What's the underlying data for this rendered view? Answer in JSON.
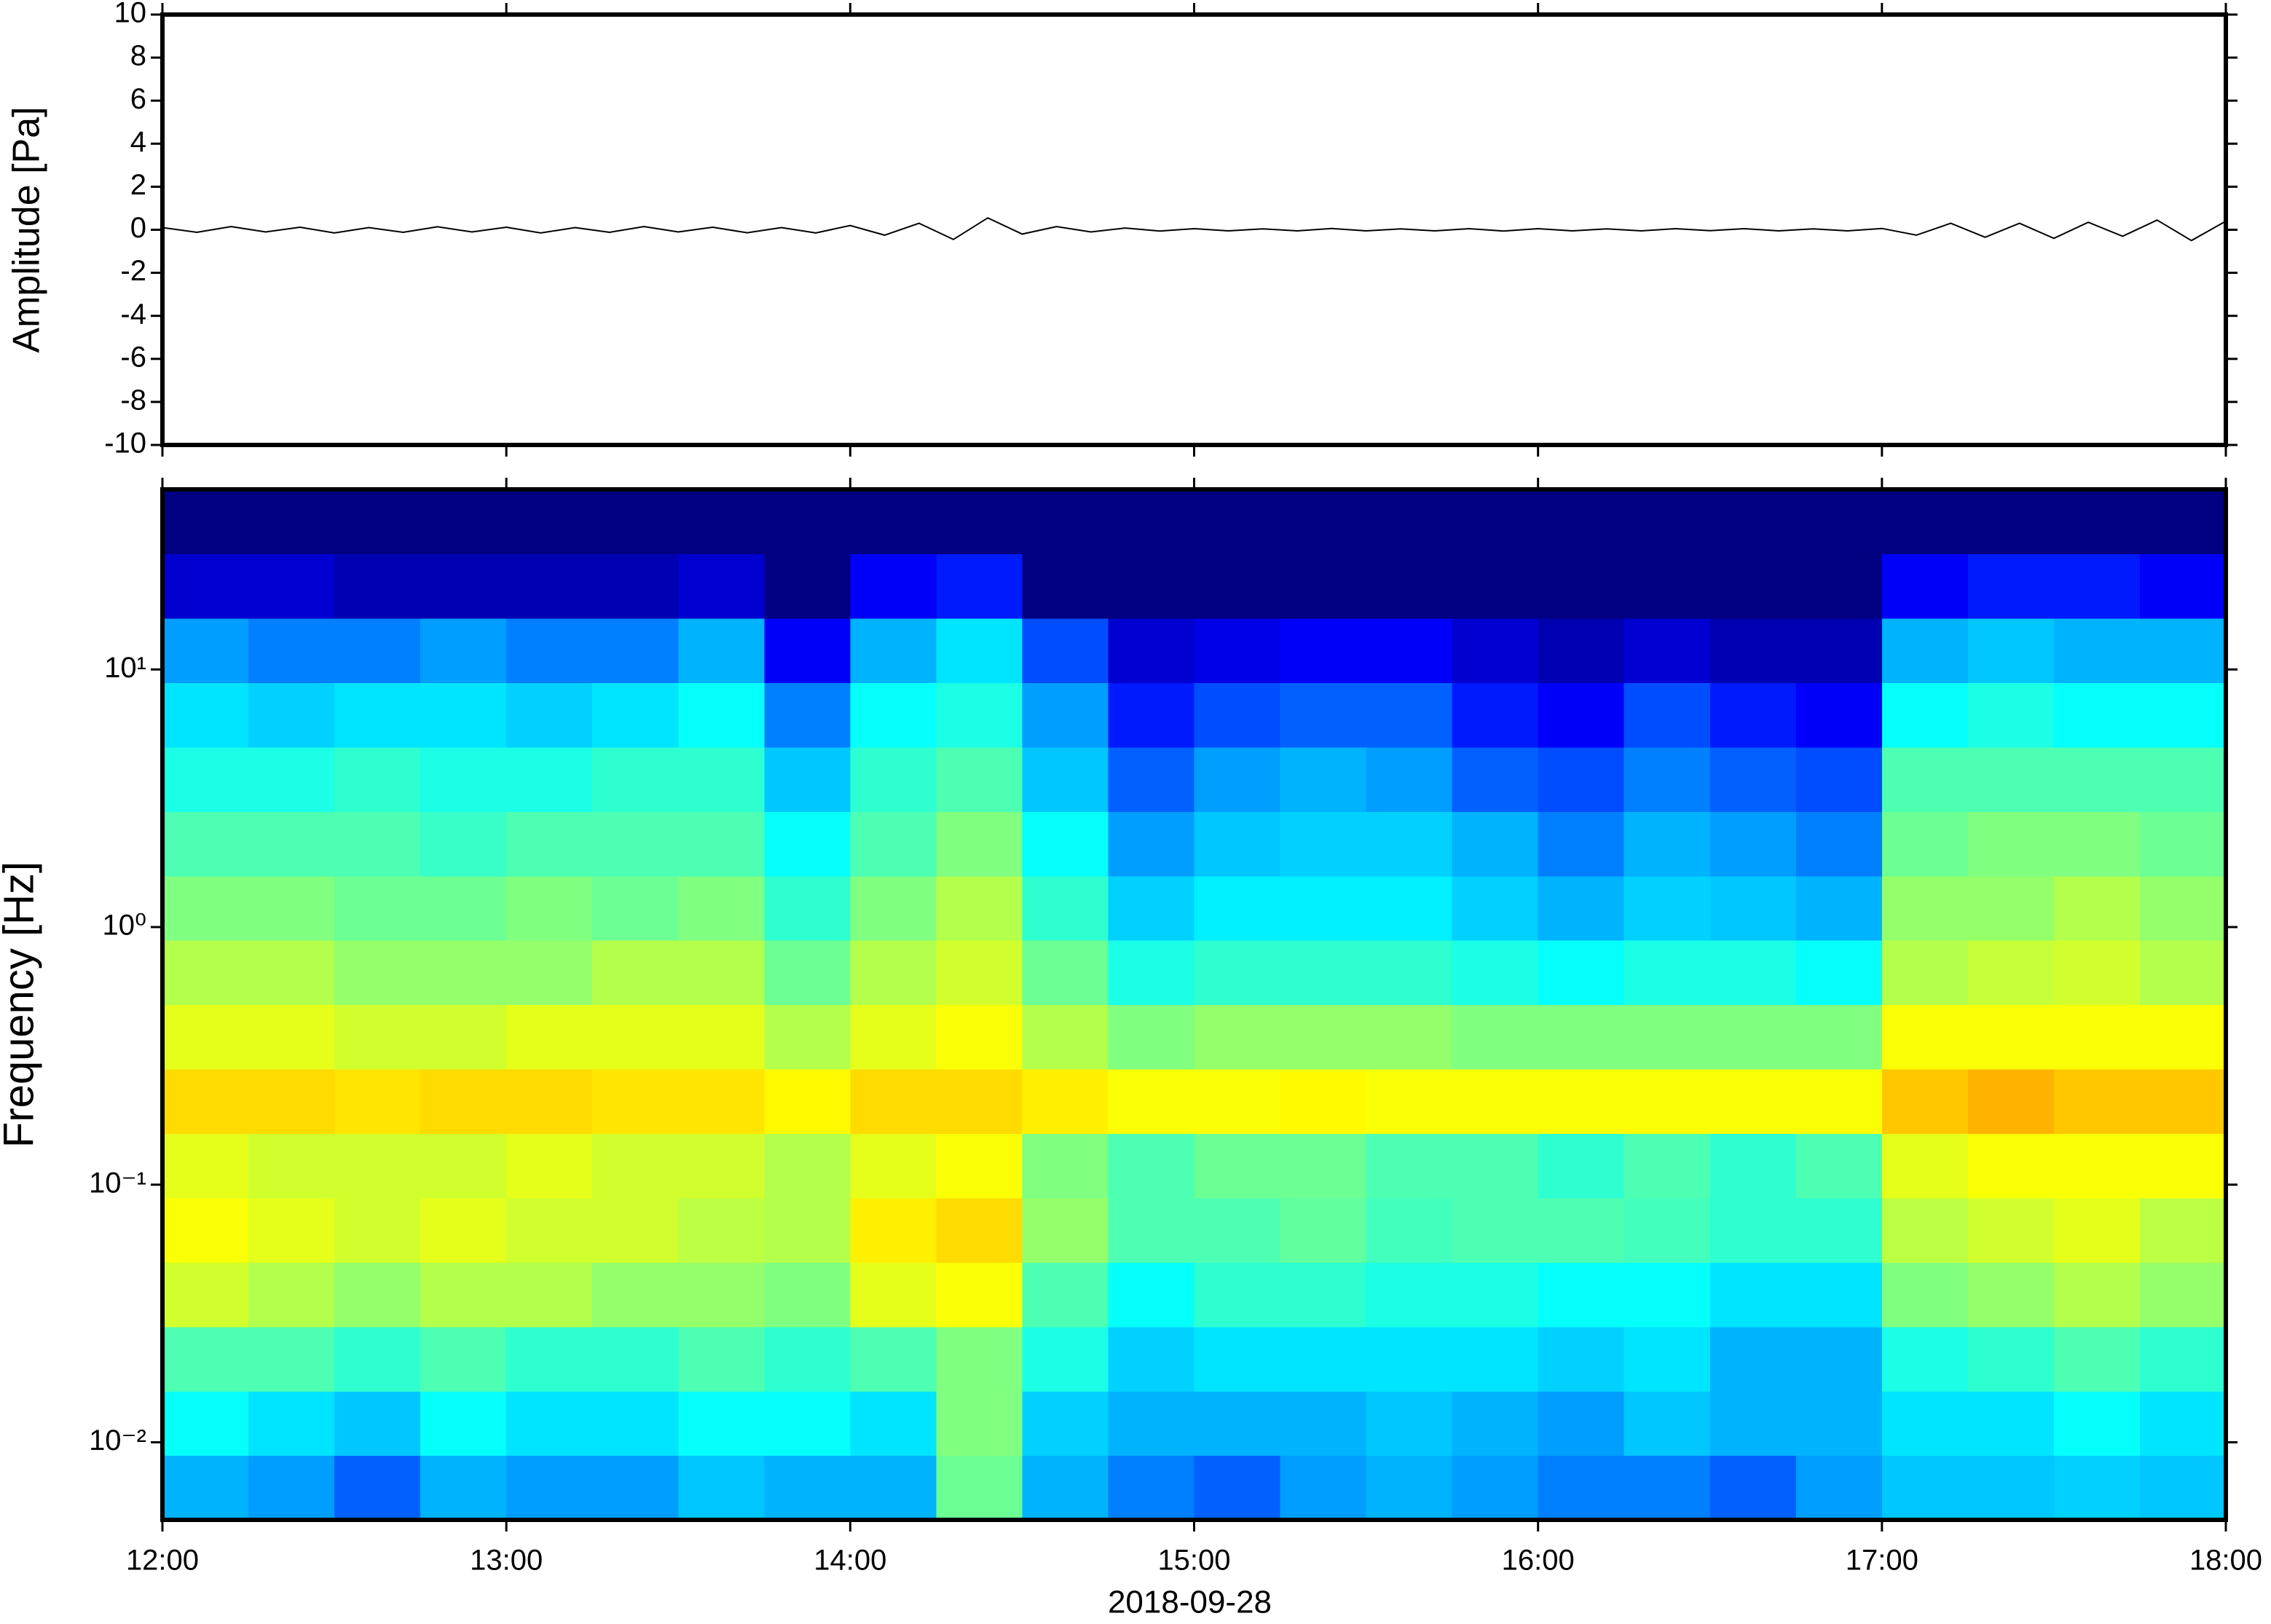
{
  "chart_data": [
    {
      "type": "line",
      "ylabel": "Amplitude [Pa]",
      "x": [
        12.0,
        12.1,
        12.2,
        12.3,
        12.4,
        12.5,
        12.6,
        12.7,
        12.8,
        12.9,
        13.0,
        13.1,
        13.2,
        13.3,
        13.4,
        13.5,
        13.6,
        13.7,
        13.8,
        13.9,
        14.0,
        14.1,
        14.2,
        14.3,
        14.4,
        14.5,
        14.6,
        14.7,
        14.8,
        14.9,
        15.0,
        15.1,
        15.2,
        15.3,
        15.4,
        15.5,
        15.6,
        15.7,
        15.8,
        15.9,
        16.0,
        16.1,
        16.2,
        16.3,
        16.4,
        16.5,
        16.6,
        16.7,
        16.8,
        16.9,
        17.0,
        17.1,
        17.2,
        17.3,
        17.4,
        17.5,
        17.6,
        17.7,
        17.8,
        17.9,
        18.0
      ],
      "values": [
        0.1,
        -0.12,
        0.15,
        -0.1,
        0.12,
        -0.15,
        0.1,
        -0.12,
        0.14,
        -0.1,
        0.12,
        -0.15,
        0.1,
        -0.12,
        0.15,
        -0.1,
        0.12,
        -0.14,
        0.1,
        -0.15,
        0.2,
        -0.25,
        0.3,
        -0.45,
        0.55,
        -0.2,
        0.15,
        -0.1,
        0.08,
        -0.06,
        0.05,
        -0.05,
        0.04,
        -0.05,
        0.06,
        -0.05,
        0.04,
        -0.05,
        0.05,
        -0.06,
        0.05,
        -0.05,
        0.04,
        -0.05,
        0.05,
        -0.04,
        0.05,
        -0.05,
        0.04,
        -0.05,
        0.06,
        -0.25,
        0.3,
        -0.35,
        0.3,
        -0.4,
        0.35,
        -0.3,
        0.45,
        -0.5,
        0.4
      ],
      "color": "#000000",
      "xlim": [
        12,
        18
      ],
      "xticks": [
        12,
        13,
        14,
        15,
        16,
        17,
        18
      ],
      "ylim": [
        -10,
        10
      ],
      "yticks": [
        -10,
        -8,
        -6,
        -4,
        -2,
        0,
        2,
        4,
        6,
        8,
        10
      ]
    },
    {
      "type": "heatmap",
      "ylabel": "Frequency [Hz]",
      "xlabel": "2018-09-28",
      "colormap": "jet",
      "log": true,
      "x_edges": [
        12,
        12.25,
        12.5,
        12.75,
        13,
        13.25,
        13.5,
        13.75,
        14,
        14.25,
        14.5,
        14.75,
        15,
        15.25,
        15.5,
        15.75,
        16,
        16.25,
        16.5,
        16.75,
        17,
        17.25,
        17.5,
        17.75,
        18
      ],
      "y_edges": [
        0.005,
        0.0089,
        0.0158,
        0.0281,
        0.05,
        0.0889,
        0.158,
        0.281,
        0.5,
        0.889,
        1.58,
        2.81,
        5,
        8.89,
        15.8,
        28.1,
        50
      ],
      "z": [
        [
          0.3,
          0.28,
          0.22,
          0.3,
          0.28,
          0.28,
          0.32,
          0.3,
          0.3,
          0.48,
          0.3,
          0.25,
          0.22,
          0.28,
          0.3,
          0.28,
          0.25,
          0.25,
          0.22,
          0.28,
          0.32,
          0.32,
          0.33,
          0.32
        ],
        [
          0.38,
          0.35,
          0.32,
          0.38,
          0.35,
          0.35,
          0.38,
          0.38,
          0.35,
          0.5,
          0.33,
          0.3,
          0.3,
          0.3,
          0.32,
          0.3,
          0.28,
          0.32,
          0.3,
          0.3,
          0.35,
          0.35,
          0.38,
          0.35
        ],
        [
          0.45,
          0.45,
          0.42,
          0.45,
          0.42,
          0.42,
          0.45,
          0.42,
          0.45,
          0.5,
          0.4,
          0.33,
          0.35,
          0.35,
          0.35,
          0.35,
          0.33,
          0.35,
          0.3,
          0.3,
          0.4,
          0.42,
          0.45,
          0.42
        ],
        [
          0.58,
          0.55,
          0.52,
          0.55,
          0.55,
          0.52,
          0.52,
          0.5,
          0.6,
          0.62,
          0.45,
          0.38,
          0.42,
          0.42,
          0.4,
          0.4,
          0.38,
          0.38,
          0.35,
          0.35,
          0.5,
          0.52,
          0.55,
          0.52
        ],
        [
          0.62,
          0.6,
          0.58,
          0.6,
          0.58,
          0.58,
          0.56,
          0.55,
          0.64,
          0.66,
          0.52,
          0.45,
          0.45,
          0.47,
          0.44,
          0.45,
          0.45,
          0.44,
          0.42,
          0.42,
          0.56,
          0.58,
          0.6,
          0.56
        ],
        [
          0.6,
          0.58,
          0.58,
          0.58,
          0.6,
          0.58,
          0.58,
          0.55,
          0.6,
          0.62,
          0.5,
          0.45,
          0.48,
          0.48,
          0.45,
          0.45,
          0.42,
          0.45,
          0.42,
          0.45,
          0.6,
          0.62,
          0.62,
          0.62
        ],
        [
          0.66,
          0.66,
          0.65,
          0.66,
          0.66,
          0.65,
          0.65,
          0.63,
          0.66,
          0.66,
          0.64,
          0.62,
          0.62,
          0.63,
          0.62,
          0.62,
          0.62,
          0.62,
          0.62,
          0.62,
          0.68,
          0.7,
          0.68,
          0.68
        ],
        [
          0.6,
          0.6,
          0.58,
          0.58,
          0.6,
          0.6,
          0.6,
          0.55,
          0.6,
          0.62,
          0.55,
          0.5,
          0.52,
          0.52,
          0.52,
          0.5,
          0.5,
          0.5,
          0.5,
          0.5,
          0.62,
          0.62,
          0.62,
          0.62
        ],
        [
          0.55,
          0.55,
          0.52,
          0.52,
          0.52,
          0.55,
          0.55,
          0.48,
          0.55,
          0.58,
          0.48,
          0.4,
          0.42,
          0.42,
          0.42,
          0.4,
          0.38,
          0.4,
          0.4,
          0.38,
          0.55,
          0.57,
          0.58,
          0.55
        ],
        [
          0.5,
          0.5,
          0.48,
          0.48,
          0.5,
          0.48,
          0.5,
          0.42,
          0.5,
          0.55,
          0.42,
          0.33,
          0.36,
          0.36,
          0.36,
          0.33,
          0.3,
          0.33,
          0.32,
          0.3,
          0.52,
          0.52,
          0.55,
          0.52
        ],
        [
          0.45,
          0.45,
          0.45,
          0.43,
          0.45,
          0.45,
          0.45,
          0.38,
          0.45,
          0.5,
          0.38,
          0.28,
          0.32,
          0.33,
          0.33,
          0.3,
          0.25,
          0.3,
          0.28,
          0.25,
          0.48,
          0.5,
          0.5,
          0.48
        ],
        [
          0.4,
          0.4,
          0.42,
          0.4,
          0.4,
          0.42,
          0.42,
          0.32,
          0.42,
          0.45,
          0.32,
          0.22,
          0.28,
          0.3,
          0.28,
          0.22,
          0.2,
          0.25,
          0.22,
          0.2,
          0.45,
          0.45,
          0.45,
          0.45
        ],
        [
          0.35,
          0.33,
          0.35,
          0.35,
          0.33,
          0.35,
          0.38,
          0.25,
          0.38,
          0.4,
          0.28,
          0.15,
          0.2,
          0.22,
          0.22,
          0.15,
          0.12,
          0.2,
          0.15,
          0.12,
          0.38,
          0.4,
          0.38,
          0.38
        ],
        [
          0.28,
          0.25,
          0.25,
          0.28,
          0.25,
          0.25,
          0.3,
          0.12,
          0.3,
          0.35,
          0.2,
          0.08,
          0.1,
          0.12,
          0.12,
          0.08,
          0.05,
          0.08,
          0.05,
          0.05,
          0.3,
          0.32,
          0.3,
          0.3
        ],
        [
          0.08,
          0.08,
          0.05,
          0.05,
          0.05,
          0.05,
          0.08,
          0,
          0.12,
          0.15,
          0,
          0,
          0,
          0,
          0,
          0,
          0,
          0,
          0,
          0,
          0.12,
          0.15,
          0.15,
          0.12
        ],
        [
          0,
          0,
          0,
          0,
          0,
          0,
          0,
          0,
          0,
          0,
          0,
          0,
          0,
          0,
          0,
          0,
          0,
          0,
          0,
          0,
          0,
          0,
          0,
          0
        ]
      ],
      "xlim": [
        12,
        18
      ],
      "xticks": [
        {
          "value": 12,
          "label": "12:00"
        },
        {
          "value": 13,
          "label": "13:00"
        },
        {
          "value": 14,
          "label": "14:00"
        },
        {
          "value": 15,
          "label": "15:00"
        },
        {
          "value": 16,
          "label": "16:00"
        },
        {
          "value": 17,
          "label": "17:00"
        },
        {
          "value": 18,
          "label": "18:00"
        }
      ],
      "ylim": [
        0.005,
        50
      ],
      "yticks": [
        {
          "value": 0.01,
          "label": "10⁻²"
        },
        {
          "value": 0.1,
          "label": "10⁻¹"
        },
        {
          "value": 1,
          "label": "10⁰"
        },
        {
          "value": 10,
          "label": "10¹"
        }
      ]
    }
  ]
}
